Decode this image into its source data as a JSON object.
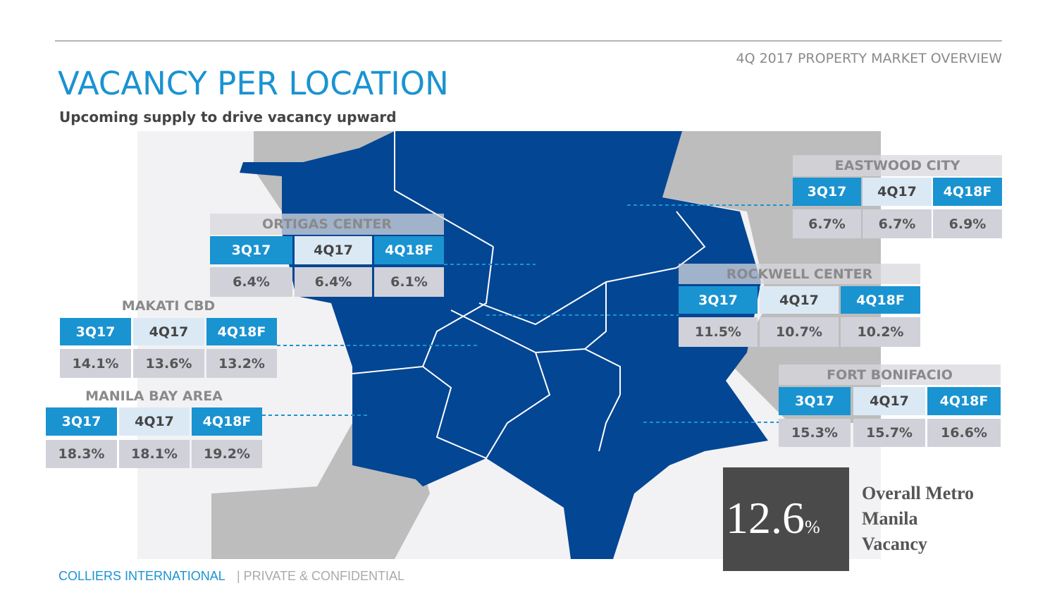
{
  "header": {
    "top_right": "4Q 2017 PROPERTY MARKET OVERVIEW",
    "title": "VACANCY PER LOCATION",
    "subtitle": "Upcoming supply to drive vacancy upward"
  },
  "locations": [
    {
      "name": "EASTWOOD CITY",
      "headers": [
        "3Q17",
        "4Q17",
        "4Q18F"
      ],
      "values": [
        "6.7%",
        "6.7%",
        "6.9%"
      ]
    },
    {
      "name": "ORTIGAS CENTER",
      "headers": [
        "3Q17",
        "4Q17",
        "4Q18F"
      ],
      "values": [
        "6.4%",
        "6.4%",
        "6.1%"
      ]
    },
    {
      "name": "MAKATI CBD",
      "headers": [
        "3Q17",
        "4Q17",
        "4Q18F"
      ],
      "values": [
        "14.1%",
        "13.6%",
        "13.2%"
      ]
    },
    {
      "name": "ROCKWELL CENTER",
      "headers": [
        "3Q17",
        "4Q17",
        "4Q18F"
      ],
      "values": [
        "11.5%",
        "10.7%",
        "10.2%"
      ]
    },
    {
      "name": "MANILA BAY AREA",
      "headers": [
        "3Q17",
        "4Q17",
        "4Q18F"
      ],
      "values": [
        "18.3%",
        "18.1%",
        "19.2%"
      ]
    },
    {
      "name": "FORT BONIFACIO",
      "headers": [
        "3Q17",
        "4Q17",
        "4Q18F"
      ],
      "values": [
        "15.3%",
        "15.7%",
        "16.6%"
      ]
    }
  ],
  "overall": {
    "value": "12.6",
    "unit": "%",
    "label_lines": [
      "Overall Metro",
      "Manila",
      "Vacancy"
    ]
  },
  "footer": {
    "company": "COLLIERS INTERNATIONAL",
    "note": "| PRIVATE & CONFIDENTIAL"
  }
}
